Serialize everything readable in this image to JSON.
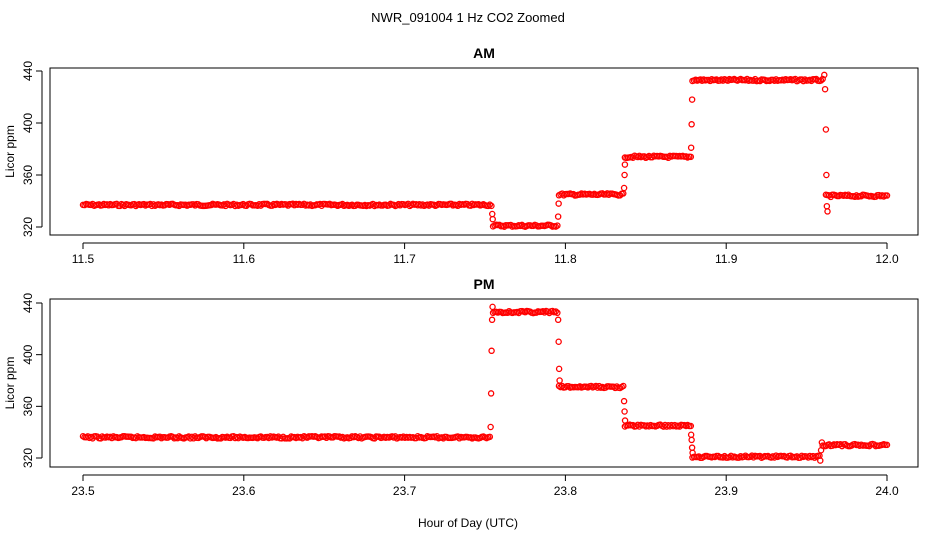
{
  "figure": {
    "title": "NWR_091004  1 Hz CO2 Zoomed",
    "xlabel": "Hour of Day (UTC)"
  },
  "chart_data": [
    {
      "type": "scatter",
      "title": "AM",
      "xlabel": "Hour of Day (UTC)",
      "ylabel": "Licor ppm",
      "xlim": [
        11.5,
        12.0
      ],
      "ylim": [
        320,
        440
      ],
      "xticks": [
        "11.5",
        "11.6",
        "11.7",
        "11.8",
        "11.9",
        "12.0"
      ],
      "yticks": [
        "320",
        "360",
        "400",
        "440"
      ],
      "marker_color": "#ff0000",
      "plateaus": [
        {
          "x_start": 11.5,
          "x_end": 11.754,
          "y": 337
        },
        {
          "x_start": 11.755,
          "x_end": 11.795,
          "y": 321
        },
        {
          "x_start": 11.796,
          "x_end": 11.836,
          "y": 345
        },
        {
          "x_start": 11.837,
          "x_end": 11.878,
          "y": 374
        },
        {
          "x_start": 11.879,
          "x_end": 11.96,
          "y": 433
        },
        {
          "x_start": 11.962,
          "x_end": 12.0,
          "y": 344
        }
      ],
      "transition_points": [
        {
          "x": 11.7545,
          "y": 330
        },
        {
          "x": 11.7548,
          "y": 326
        },
        {
          "x": 11.7955,
          "y": 328
        },
        {
          "x": 11.7958,
          "y": 338
        },
        {
          "x": 11.8365,
          "y": 350
        },
        {
          "x": 11.8368,
          "y": 360
        },
        {
          "x": 11.837,
          "y": 368
        },
        {
          "x": 11.8782,
          "y": 381
        },
        {
          "x": 11.8785,
          "y": 399
        },
        {
          "x": 11.8788,
          "y": 418
        },
        {
          "x": 11.961,
          "y": 437
        },
        {
          "x": 11.9615,
          "y": 426
        },
        {
          "x": 11.962,
          "y": 395
        },
        {
          "x": 11.9623,
          "y": 360
        },
        {
          "x": 11.9626,
          "y": 336
        },
        {
          "x": 11.963,
          "y": 332
        }
      ]
    },
    {
      "type": "scatter",
      "title": "PM",
      "xlabel": "Hour of Day (UTC)",
      "ylabel": "Licor ppm",
      "xlim": [
        23.5,
        24.0
      ],
      "ylim": [
        320,
        440
      ],
      "xticks": [
        "23.5",
        "23.6",
        "23.7",
        "23.8",
        "23.9",
        "24.0"
      ],
      "yticks": [
        "320",
        "360",
        "400",
        "440"
      ],
      "marker_color": "#ff0000",
      "plateaus": [
        {
          "x_start": 23.5,
          "x_end": 23.753,
          "y": 336
        },
        {
          "x_start": 23.755,
          "x_end": 23.795,
          "y": 433
        },
        {
          "x_start": 23.796,
          "x_end": 23.836,
          "y": 375
        },
        {
          "x_start": 23.837,
          "x_end": 23.878,
          "y": 345
        },
        {
          "x_start": 23.879,
          "x_end": 23.958,
          "y": 321
        },
        {
          "x_start": 23.96,
          "x_end": 24.0,
          "y": 330
        }
      ],
      "transition_points": [
        {
          "x": 23.7535,
          "y": 344
        },
        {
          "x": 23.7538,
          "y": 370
        },
        {
          "x": 23.7541,
          "y": 403
        },
        {
          "x": 23.7544,
          "y": 427
        },
        {
          "x": 23.7547,
          "y": 437
        },
        {
          "x": 23.7955,
          "y": 427
        },
        {
          "x": 23.7958,
          "y": 410
        },
        {
          "x": 23.7961,
          "y": 389
        },
        {
          "x": 23.7964,
          "y": 380
        },
        {
          "x": 23.8365,
          "y": 364
        },
        {
          "x": 23.8368,
          "y": 356
        },
        {
          "x": 23.8371,
          "y": 349
        },
        {
          "x": 23.8782,
          "y": 338
        },
        {
          "x": 23.8785,
          "y": 334
        },
        {
          "x": 23.8788,
          "y": 328
        },
        {
          "x": 23.8791,
          "y": 324
        },
        {
          "x": 23.9585,
          "y": 318
        },
        {
          "x": 23.959,
          "y": 326
        },
        {
          "x": 23.9595,
          "y": 332
        }
      ]
    }
  ]
}
